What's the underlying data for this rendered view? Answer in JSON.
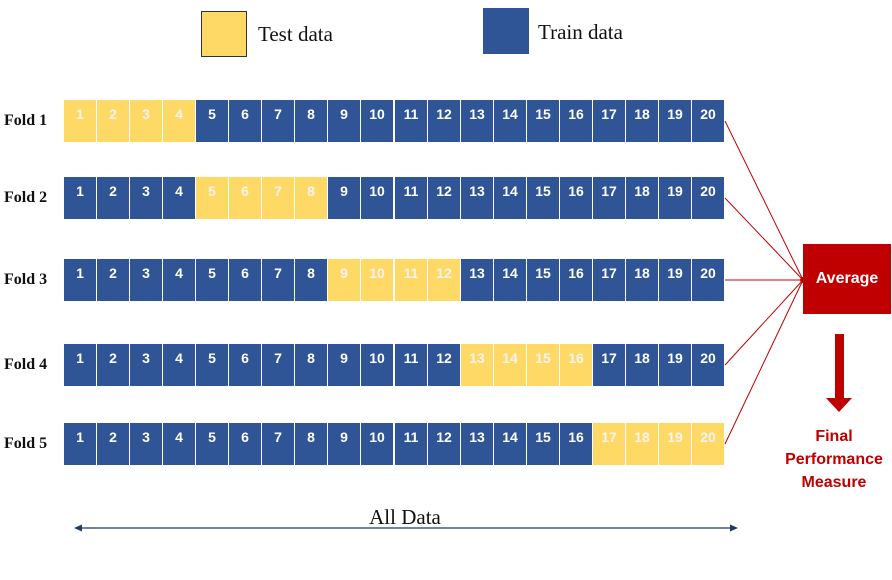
{
  "legend": {
    "test": {
      "label": "Test data",
      "color": "#FFD966"
    },
    "train": {
      "label": "Train data",
      "color": "#2F5597"
    }
  },
  "cells": [
    "1",
    "2",
    "3",
    "4",
    "5",
    "6",
    "7",
    "8",
    "9",
    "10",
    "11",
    "12",
    "13",
    "14",
    "15",
    "16",
    "17",
    "18",
    "19",
    "20"
  ],
  "folds": [
    {
      "label": "Fold 1",
      "test_range": [
        1,
        4
      ]
    },
    {
      "label": "Fold 2",
      "test_range": [
        5,
        8
      ]
    },
    {
      "label": "Fold 3",
      "test_range": [
        9,
        12
      ]
    },
    {
      "label": "Fold 4",
      "test_range": [
        13,
        16
      ]
    },
    {
      "label": "Fold 5",
      "test_range": [
        17,
        20
      ]
    }
  ],
  "average": {
    "label": "Average",
    "color": "#C00000"
  },
  "final": {
    "lines": [
      "Final",
      "Performance",
      "Measure"
    ]
  },
  "all_data": {
    "label": "All Data"
  }
}
